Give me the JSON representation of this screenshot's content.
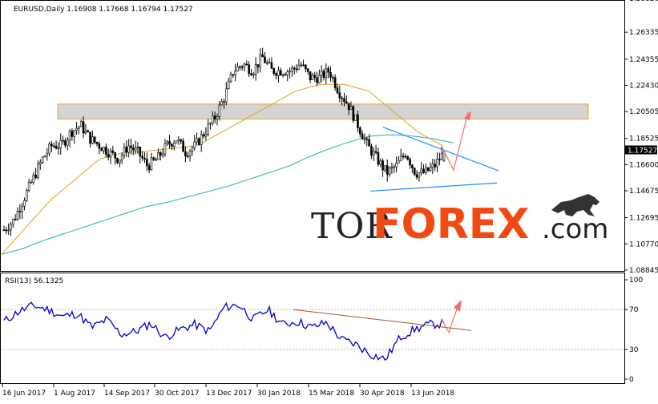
{
  "chart_data": [
    {
      "type": "candlestick",
      "info": "EURUSD,Daily  1.16908 1.17668 1.16794 1.17527",
      "symbol": "EURUSD",
      "timeframe": "Daily",
      "ohlc": {
        "open": 1.16908,
        "high": 1.17668,
        "low": 1.16794,
        "close": 1.17527
      },
      "current_price_label": "1.17527",
      "ylim": [
        1.0884,
        1.2835
      ],
      "y_ticks": [
        "1.28820",
        "1.26335",
        "1.24355",
        "1.22430",
        "1.20505",
        "1.18525",
        "1.16600",
        "1.14675",
        "1.12695",
        "1.10770",
        "1.08845"
      ],
      "x_ticks": [
        "16 Jun 2017",
        "1 Aug 2017",
        "14 Sep 2017",
        "30 Oct 2017",
        "13 Dec 2017",
        "30 Jan 2018",
        "15 Mar 2018",
        "30 Apr 2018",
        "13 Jun 2018"
      ],
      "closes_approx": [
        1.118,
        1.125,
        1.14,
        1.155,
        1.17,
        1.18,
        1.18,
        1.19,
        1.195,
        1.185,
        1.18,
        1.175,
        1.17,
        1.18,
        1.175,
        1.165,
        1.17,
        1.18,
        1.185,
        1.175,
        1.18,
        1.19,
        1.2,
        1.215,
        1.235,
        1.24,
        1.235,
        1.245,
        1.235,
        1.235,
        1.235,
        1.24,
        1.23,
        1.23,
        1.235,
        1.22,
        1.21,
        1.195,
        1.18,
        1.17,
        1.16,
        1.165,
        1.175,
        1.16,
        1.16,
        1.165,
        1.175
      ],
      "ma_slow_approx": [
        1.1,
        1.104,
        1.11,
        1.115,
        1.12,
        1.125,
        1.13,
        1.135,
        1.138,
        1.142,
        1.146,
        1.15,
        1.155,
        1.16,
        1.165,
        1.172,
        1.178,
        1.183,
        1.187,
        1.188,
        1.187,
        1.185,
        1.182
      ],
      "ma_fast_approx": [
        1.1,
        1.12,
        1.14,
        1.155,
        1.17,
        1.175,
        1.176,
        1.178,
        1.18,
        1.19,
        1.2,
        1.21,
        1.22,
        1.225,
        1.225,
        1.22,
        1.205,
        1.19,
        1.18
      ],
      "resistance_zone": [
        1.1995,
        1.2105
      ],
      "colors": {
        "candle": "#000000",
        "ma_fast": "#DAA520",
        "ma_slow": "#20B2AA",
        "trendline": "#1E90FF",
        "arrow": "#F26B6B",
        "zone_fill": "#D3D3D3",
        "zone_border": "#E8A33C"
      }
    },
    {
      "type": "line",
      "label": "RSI(13) 56.1325",
      "indicator": "RSI",
      "period": 13,
      "last_value": 56.1325,
      "ylim": [
        0,
        100
      ],
      "y_ticks": [
        "100",
        "70",
        "30",
        "0"
      ],
      "values_approx": [
        58,
        68,
        74,
        70,
        63,
        66,
        52,
        60,
        45,
        48,
        56,
        42,
        50,
        55,
        48,
        72,
        75,
        60,
        70,
        55,
        58,
        52,
        57,
        40,
        35,
        25,
        20,
        42,
        50,
        55,
        56
      ],
      "colors": {
        "rsi_line": "#0000CD",
        "trendline": "#A0522D",
        "arrow": "#F26B6B"
      }
    }
  ],
  "logo": {
    "part1": "TOR",
    "part2": "FOREX",
    "part3": ".com"
  }
}
